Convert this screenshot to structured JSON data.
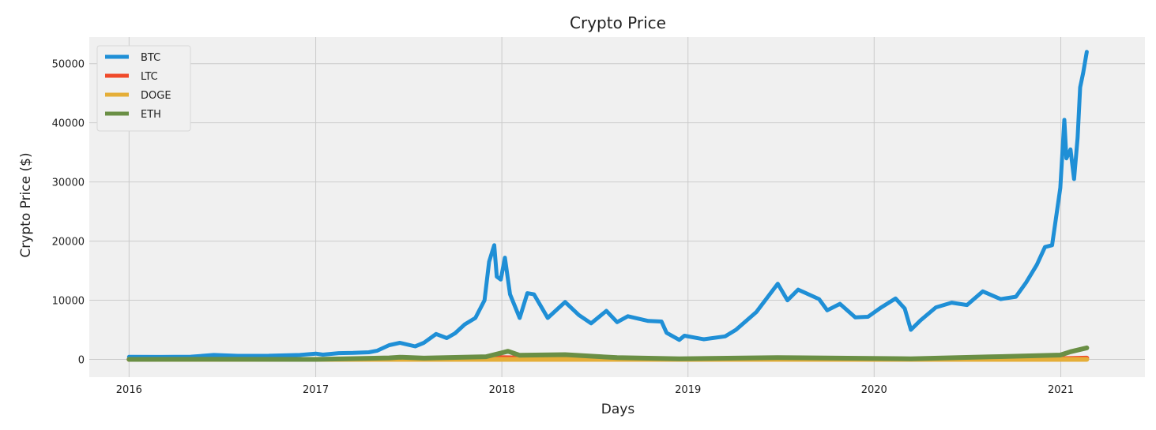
{
  "chart_data": {
    "type": "line",
    "title": "Crypto Price",
    "xlabel": "Days",
    "ylabel": "Crypto Price ($)",
    "xlim": [
      "2015-10-15",
      "2021-06-15"
    ],
    "ylim": [
      -3000,
      54500
    ],
    "x_ticks": [
      {
        "label": "2016",
        "date": "2016-01-01"
      },
      {
        "label": "2017",
        "date": "2017-01-01"
      },
      {
        "label": "2018",
        "date": "2018-01-01"
      },
      {
        "label": "2019",
        "date": "2019-01-01"
      },
      {
        "label": "2020",
        "date": "2020-01-01"
      },
      {
        "label": "2021",
        "date": "2021-01-01"
      }
    ],
    "y_ticks": [
      0,
      10000,
      20000,
      30000,
      40000,
      50000
    ],
    "grid": true,
    "legend_position": "top-left",
    "colors": {
      "plot_background": "#f0f0f0",
      "grid": "#cbcbcb"
    },
    "series": [
      {
        "name": "BTC",
        "color": "#1f8fd6",
        "points": [
          [
            "2016-01-01",
            430
          ],
          [
            "2016-03-01",
            420
          ],
          [
            "2016-05-01",
            450
          ],
          [
            "2016-06-15",
            750
          ],
          [
            "2016-08-01",
            600
          ],
          [
            "2016-10-01",
            610
          ],
          [
            "2016-12-01",
            750
          ],
          [
            "2017-01-01",
            970
          ],
          [
            "2017-01-15",
            800
          ],
          [
            "2017-02-15",
            1050
          ],
          [
            "2017-03-15",
            1100
          ],
          [
            "2017-04-15",
            1200
          ],
          [
            "2017-05-01",
            1450
          ],
          [
            "2017-05-25",
            2400
          ],
          [
            "2017-06-15",
            2800
          ],
          [
            "2017-07-15",
            2200
          ],
          [
            "2017-08-01",
            2800
          ],
          [
            "2017-08-25",
            4300
          ],
          [
            "2017-09-15",
            3600
          ],
          [
            "2017-10-01",
            4400
          ],
          [
            "2017-10-20",
            5900
          ],
          [
            "2017-11-10",
            7000
          ],
          [
            "2017-11-28",
            10000
          ],
          [
            "2017-12-07",
            16500
          ],
          [
            "2017-12-17",
            19300
          ],
          [
            "2017-12-22",
            14000
          ],
          [
            "2017-12-30",
            13500
          ],
          [
            "2018-01-07",
            17200
          ],
          [
            "2018-01-17",
            11000
          ],
          [
            "2018-02-05",
            7000
          ],
          [
            "2018-02-20",
            11200
          ],
          [
            "2018-03-05",
            11000
          ],
          [
            "2018-04-01",
            7000
          ],
          [
            "2018-05-05",
            9700
          ],
          [
            "2018-06-01",
            7500
          ],
          [
            "2018-06-25",
            6100
          ],
          [
            "2018-07-25",
            8200
          ],
          [
            "2018-08-15",
            6300
          ],
          [
            "2018-09-05",
            7300
          ],
          [
            "2018-10-15",
            6500
          ],
          [
            "2018-11-10",
            6400
          ],
          [
            "2018-11-20",
            4500
          ],
          [
            "2018-12-15",
            3300
          ],
          [
            "2018-12-25",
            4000
          ],
          [
            "2019-02-01",
            3400
          ],
          [
            "2019-03-15",
            3900
          ],
          [
            "2019-04-05",
            5000
          ],
          [
            "2019-05-15",
            8000
          ],
          [
            "2019-06-26",
            12800
          ],
          [
            "2019-07-15",
            10000
          ],
          [
            "2019-08-05",
            11800
          ],
          [
            "2019-09-15",
            10200
          ],
          [
            "2019-10-01",
            8300
          ],
          [
            "2019-10-26",
            9400
          ],
          [
            "2019-11-25",
            7100
          ],
          [
            "2019-12-20",
            7200
          ],
          [
            "2020-01-15",
            8800
          ],
          [
            "2020-02-12",
            10300
          ],
          [
            "2020-03-01",
            8600
          ],
          [
            "2020-03-13",
            5000
          ],
          [
            "2020-04-01",
            6600
          ],
          [
            "2020-05-01",
            8800
          ],
          [
            "2020-06-01",
            9600
          ],
          [
            "2020-07-01",
            9200
          ],
          [
            "2020-08-01",
            11500
          ],
          [
            "2020-09-05",
            10200
          ],
          [
            "2020-10-05",
            10600
          ],
          [
            "2020-10-25",
            13000
          ],
          [
            "2020-11-15",
            16000
          ],
          [
            "2020-12-01",
            19000
          ],
          [
            "2020-12-15",
            19300
          ],
          [
            "2020-12-31",
            29000
          ],
          [
            "2021-01-08",
            40500
          ],
          [
            "2021-01-12",
            34000
          ],
          [
            "2021-01-20",
            35500
          ],
          [
            "2021-01-27",
            30500
          ],
          [
            "2021-02-03",
            37500
          ],
          [
            "2021-02-08",
            46000
          ],
          [
            "2021-02-14",
            48500
          ],
          [
            "2021-02-21",
            52000
          ]
        ]
      },
      {
        "name": "LTC",
        "color": "#f04a2a",
        "points": [
          [
            "2016-01-01",
            3
          ],
          [
            "2017-01-01",
            4
          ],
          [
            "2017-06-01",
            40
          ],
          [
            "2017-12-18",
            330
          ],
          [
            "2018-03-01",
            200
          ],
          [
            "2018-12-15",
            25
          ],
          [
            "2019-06-25",
            135
          ],
          [
            "2020-03-13",
            35
          ],
          [
            "2020-12-31",
            125
          ],
          [
            "2021-02-21",
            220
          ]
        ]
      },
      {
        "name": "DOGE",
        "color": "#e5ae38",
        "points": [
          [
            "2016-01-01",
            0
          ],
          [
            "2017-12-18",
            0
          ],
          [
            "2019-06-25",
            0
          ],
          [
            "2021-01-28",
            0.07
          ],
          [
            "2021-02-21",
            0.06
          ]
        ]
      },
      {
        "name": "ETH",
        "color": "#6a8f45",
        "points": [
          [
            "2016-01-01",
            1
          ],
          [
            "2016-06-15",
            20
          ],
          [
            "2017-01-01",
            8
          ],
          [
            "2017-05-25",
            250
          ],
          [
            "2017-06-15",
            380
          ],
          [
            "2017-08-01",
            220
          ],
          [
            "2017-12-01",
            450
          ],
          [
            "2018-01-13",
            1380
          ],
          [
            "2018-02-05",
            700
          ],
          [
            "2018-05-05",
            800
          ],
          [
            "2018-08-15",
            290
          ],
          [
            "2018-12-15",
            90
          ],
          [
            "2019-06-25",
            310
          ],
          [
            "2020-03-13",
            110
          ],
          [
            "2020-08-15",
            430
          ],
          [
            "2020-12-31",
            740
          ],
          [
            "2021-01-20",
            1300
          ],
          [
            "2021-02-21",
            1950
          ]
        ]
      }
    ]
  }
}
